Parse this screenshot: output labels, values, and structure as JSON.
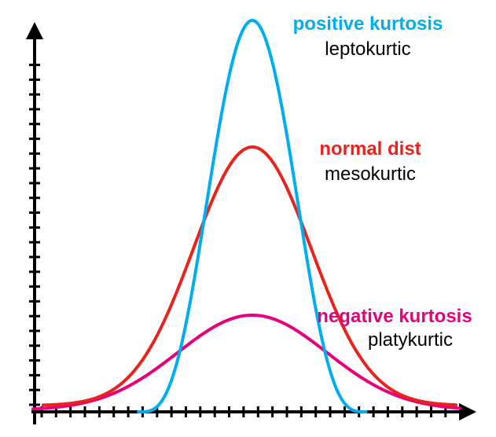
{
  "colors": {
    "axis": "#000000",
    "positive": "#00AEEF",
    "normal": "#E8231E",
    "negative": "#E6007E",
    "subtitle": "#000000"
  },
  "curves": [
    {
      "key": "negative",
      "name": "negative kurtosis",
      "subtitle": "platykurtic",
      "shape": "wide-low-bell"
    },
    {
      "key": "normal",
      "name": "normal dist",
      "subtitle": "mesokurtic",
      "shape": "medium-bell"
    },
    {
      "key": "positive",
      "name": "positive kurtosis",
      "subtitle": "leptokurtic",
      "shape": "narrow-tall-bell"
    }
  ]
}
